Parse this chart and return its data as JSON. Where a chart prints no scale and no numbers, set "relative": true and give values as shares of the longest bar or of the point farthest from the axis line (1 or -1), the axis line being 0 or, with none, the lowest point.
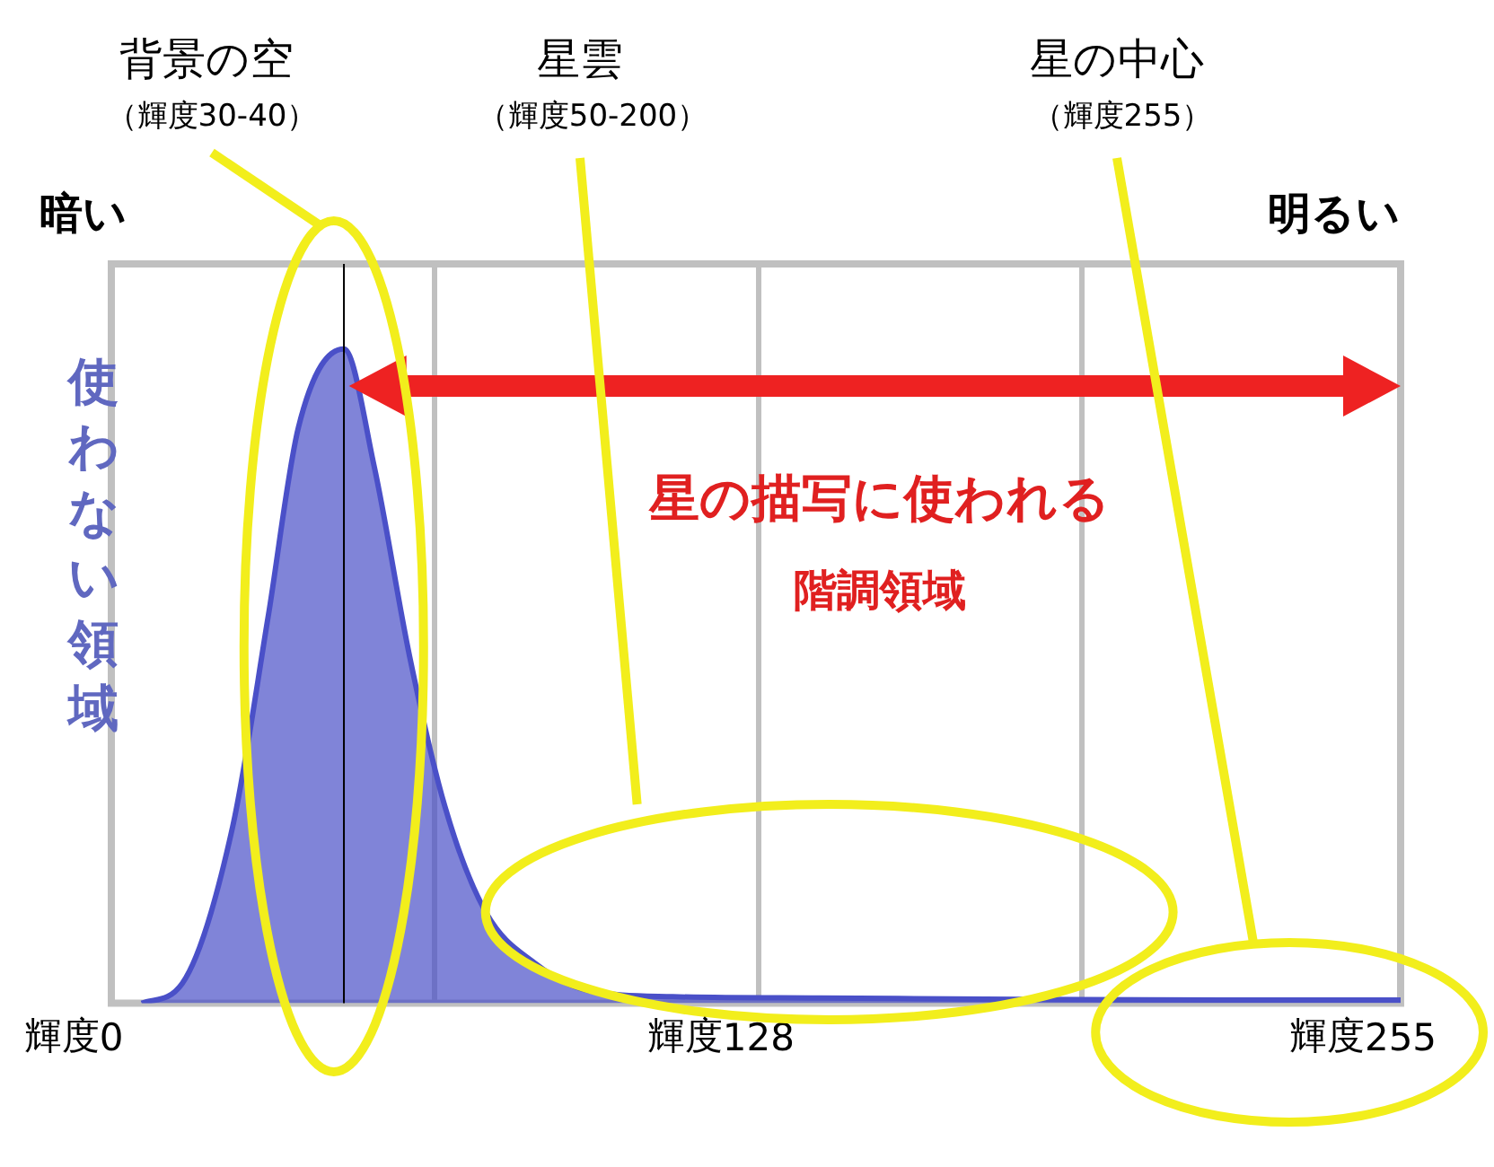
{
  "chart_data": {
    "type": "area",
    "relative": true,
    "x": [
      6,
      14,
      24,
      31,
      37,
      46,
      52,
      59,
      66,
      74,
      84,
      94,
      111,
      140,
      180,
      220,
      255
    ],
    "series": [
      {
        "color": "#4a50c8",
        "values": [
          0,
          0.03,
          0.27,
          0.59,
          0.88,
          1,
          0.82,
          0.53,
          0.3,
          0.14,
          0.06,
          0.02,
          0.01,
          0.008,
          0.006,
          0.005,
          0.005
        ]
      }
    ],
    "xlim": [
      0,
      255
    ],
    "xticks": [
      0,
      {
        "value": 64,
        "label": null
      },
      128,
      {
        "value": 192,
        "label": null
      },
      255
    ],
    "grid": "x",
    "legend": false,
    "ref_lines": [
      {
        "axis": "x",
        "value": 46
      }
    ],
    "annotations": [
      "背景の空",
      "（輝度30-40）",
      "星雲",
      "（輝度50-200）",
      "星の中心",
      "（輝度255）",
      "暗い",
      "明るい",
      "使わない領域",
      "星の描写に使われる",
      "階調領域",
      "輝度",
      "輝度",
      "輝度"
    ]
  }
}
